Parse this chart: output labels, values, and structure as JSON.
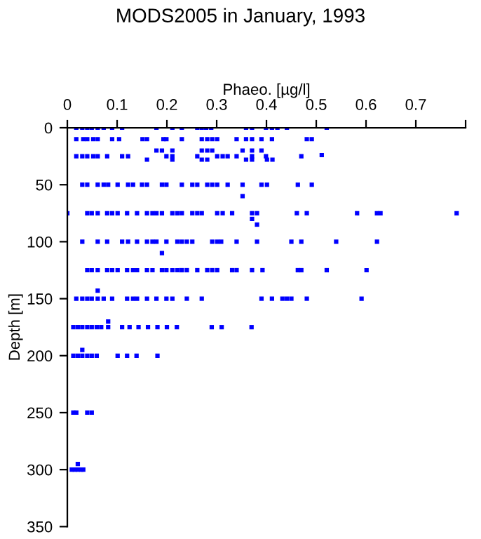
{
  "chart_data": {
    "type": "scatter",
    "title": "MODS2005 in January, 1993",
    "xlabel": "Phaeo. [µg/l]",
    "ylabel": "Depth [m]",
    "xlim": [
      0,
      0.8
    ],
    "xticks": [
      0,
      0.1,
      0.2,
      0.3,
      0.4,
      0.5,
      0.6,
      0.7,
      {
        "value": 0.8,
        "label": null
      }
    ],
    "ylim": [
      350,
      0
    ],
    "yticks": [
      0,
      50,
      100,
      150,
      200,
      250,
      300,
      350
    ],
    "marker": "square",
    "series": [
      {
        "color": "#0000ff",
        "x": [
          0.018,
          0.03,
          0.04,
          0.049,
          0.061,
          0.073,
          0.09,
          0.11,
          0.179,
          0.211,
          0.23,
          0.261,
          0.27,
          0.279,
          0.289,
          0.359,
          0.371,
          0.399,
          0.411,
          0.422,
          0.441,
          0.521,
          0.018,
          0.032,
          0.04,
          0.052,
          0.061,
          0.09,
          0.104,
          0.151,
          0.16,
          0.193,
          0.199,
          0.23,
          0.27,
          0.281,
          0.291,
          0.301,
          0.34,
          0.359,
          0.371,
          0.39,
          0.411,
          0.481,
          0.491,
          0.179,
          0.19,
          0.211,
          0.27,
          0.281,
          0.291,
          0.352,
          0.371,
          0.39,
          0.511,
          0.018,
          0.03,
          0.04,
          0.052,
          0.061,
          0.08,
          0.11,
          0.122,
          0.199,
          0.211,
          0.261,
          0.301,
          0.312,
          0.322,
          0.34,
          0.371,
          0.399,
          0.47,
          0.16,
          0.211,
          0.27,
          0.281,
          0.359,
          0.371,
          0.401,
          0.412,
          0.03,
          0.04,
          0.061,
          0.073,
          0.082,
          0.101,
          0.122,
          0.132,
          0.15,
          0.16,
          0.19,
          0.199,
          0.23,
          0.251,
          0.261,
          0.281,
          0.291,
          0.301,
          0.322,
          0.352,
          0.39,
          0.401,
          0.463,
          0.491,
          0.352,
          0.0,
          0.04,
          0.049,
          0.061,
          0.08,
          0.09,
          0.101,
          0.12,
          0.14,
          0.16,
          0.171,
          0.179,
          0.19,
          0.211,
          0.221,
          0.23,
          0.251,
          0.261,
          0.27,
          0.301,
          0.312,
          0.331,
          0.371,
          0.381,
          0.461,
          0.481,
          0.582,
          0.622,
          0.629,
          0.782,
          0.371,
          0.381,
          0.03,
          0.061,
          0.08,
          0.11,
          0.122,
          0.14,
          0.16,
          0.171,
          0.179,
          0.199,
          0.221,
          0.23,
          0.24,
          0.251,
          0.291,
          0.301,
          0.309,
          0.34,
          0.381,
          0.45,
          0.47,
          0.54,
          0.622,
          0.19,
          0.04,
          0.049,
          0.061,
          0.08,
          0.09,
          0.101,
          0.12,
          0.132,
          0.14,
          0.16,
          0.171,
          0.19,
          0.199,
          0.211,
          0.221,
          0.23,
          0.24,
          0.261,
          0.281,
          0.291,
          0.301,
          0.331,
          0.34,
          0.371,
          0.392,
          0.463,
          0.47,
          0.521,
          0.601,
          0.061,
          0.018,
          0.03,
          0.04,
          0.049,
          0.061,
          0.073,
          0.09,
          0.12,
          0.132,
          0.14,
          0.16,
          0.179,
          0.199,
          0.211,
          0.24,
          0.27,
          0.39,
          0.411,
          0.432,
          0.441,
          0.45,
          0.481,
          0.591,
          0.082,
          0.012,
          0.021,
          0.03,
          0.04,
          0.049,
          0.059,
          0.068,
          0.082,
          0.11,
          0.125,
          0.143,
          0.162,
          0.181,
          0.2,
          0.22,
          0.29,
          0.31,
          0.37,
          0.03,
          0.012,
          0.021,
          0.03,
          0.04,
          0.049,
          0.059,
          0.101,
          0.12,
          0.139,
          0.181,
          0.012,
          0.018,
          0.04,
          0.049,
          0.021,
          0.009,
          0.015,
          0.021,
          0.028,
          0.032
        ],
        "values": [
          0,
          0,
          0,
          0,
          0,
          0,
          0,
          0,
          0,
          0,
          0,
          0,
          0,
          0,
          0,
          0,
          0,
          0,
          0,
          0,
          0,
          0,
          10,
          10,
          10,
          10,
          10,
          10,
          10,
          10,
          10,
          10,
          10,
          10,
          10,
          10,
          10,
          10,
          10,
          10,
          10,
          10,
          10,
          10,
          10,
          20,
          20,
          20,
          20,
          20,
          20,
          20,
          20,
          20,
          24,
          25,
          25,
          25,
          25,
          25,
          25,
          25,
          25,
          25,
          25,
          25,
          25,
          25,
          25,
          25,
          25,
          25,
          25,
          28,
          28,
          28,
          28,
          28,
          28,
          28,
          28,
          50,
          50,
          50,
          50,
          50,
          50,
          50,
          50,
          50,
          50,
          50,
          50,
          50,
          50,
          50,
          50,
          50,
          50,
          50,
          50,
          50,
          50,
          50,
          50,
          60,
          75,
          75,
          75,
          75,
          75,
          75,
          75,
          75,
          75,
          75,
          75,
          75,
          75,
          75,
          75,
          75,
          75,
          75,
          75,
          75,
          75,
          75,
          75,
          75,
          75,
          75,
          75,
          75,
          75,
          75,
          80,
          85,
          100,
          100,
          100,
          100,
          100,
          100,
          100,
          100,
          100,
          100,
          100,
          100,
          100,
          100,
          100,
          100,
          100,
          100,
          100,
          100,
          100,
          100,
          100,
          110,
          125,
          125,
          125,
          125,
          125,
          125,
          125,
          125,
          125,
          125,
          125,
          125,
          125,
          125,
          125,
          125,
          125,
          125,
          125,
          125,
          125,
          125,
          125,
          125,
          125,
          125,
          125,
          125,
          125,
          143,
          150,
          150,
          150,
          150,
          150,
          150,
          150,
          150,
          150,
          150,
          150,
          150,
          150,
          150,
          150,
          150,
          150,
          150,
          150,
          150,
          150,
          150,
          150,
          170,
          175,
          175,
          175,
          175,
          175,
          175,
          175,
          175,
          175,
          175,
          175,
          175,
          175,
          175,
          175,
          175,
          175,
          175,
          195,
          200,
          200,
          200,
          200,
          200,
          200,
          200,
          200,
          200,
          200,
          250,
          250,
          250,
          250,
          295,
          300,
          300,
          300,
          300,
          300
        ]
      }
    ]
  }
}
